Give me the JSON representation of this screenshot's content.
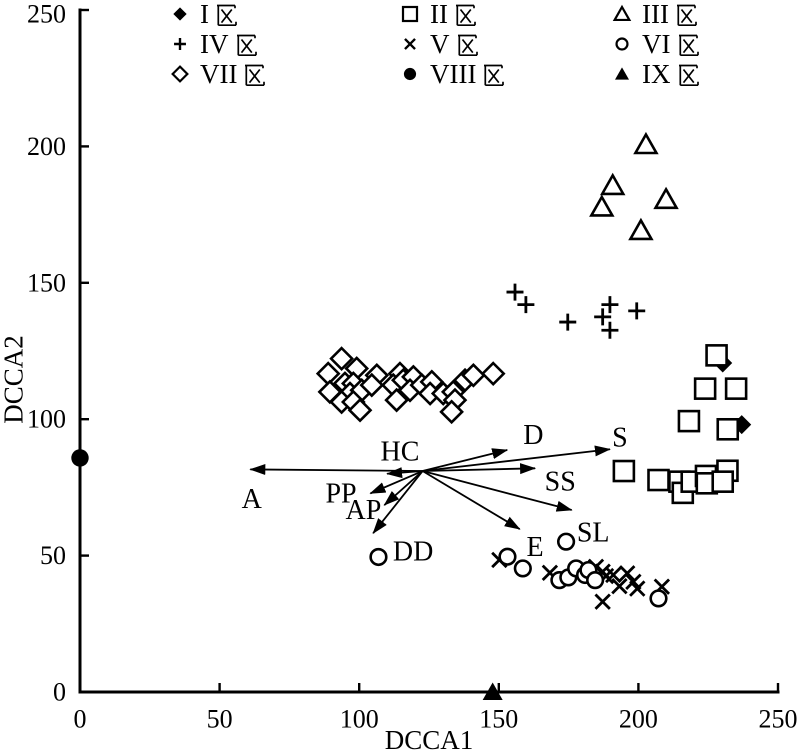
{
  "figure": {
    "background": "#ffffff",
    "ink": "#000000"
  },
  "district_suffix": "区",
  "chart_data": {
    "type": "scatter",
    "title": "",
    "xlabel": "DCCA1",
    "ylabel": "DCCA2",
    "xlim": [
      0,
      250
    ],
    "ylim": [
      0,
      250
    ],
    "xticks": [
      0,
      50,
      100,
      150,
      200,
      250
    ],
    "yticks": [
      0,
      50,
      100,
      150,
      200,
      250
    ],
    "xtick_labels": [
      "0",
      "50",
      "100",
      "150",
      "200",
      "250"
    ],
    "ytick_labels": [
      "0",
      "50",
      "100",
      "150",
      "200",
      "250"
    ],
    "grid": false,
    "legend_position": "top",
    "legend_columns": 3,
    "series": [
      {
        "name": "I区",
        "numeral": "I",
        "marker": "filled-diamond",
        "points": [
          [
            230.2,
            120.6
          ],
          [
            237,
            98
          ]
        ]
      },
      {
        "name": "II区",
        "numeral": "II",
        "marker": "open-square",
        "points": [
          [
            228,
            123.4
          ],
          [
            223.9,
            111.2
          ],
          [
            235,
            111.2
          ],
          [
            218.1,
            99.3
          ],
          [
            232,
            96.3
          ],
          [
            194.8,
            81
          ],
          [
            207.2,
            77.7
          ],
          [
            214.7,
            77.1
          ],
          [
            215.9,
            73
          ],
          [
            219.1,
            77.1
          ],
          [
            224.2,
            79.2
          ],
          [
            224.5,
            76.5
          ],
          [
            231.9,
            81.1
          ],
          [
            230.2,
            77.1
          ]
        ]
      },
      {
        "name": "III区",
        "numeral": "III",
        "marker": "open-triangle",
        "points": [
          [
            202.7,
            200.7
          ],
          [
            190.8,
            185.7
          ],
          [
            186.9,
            177.8
          ],
          [
            209.9,
            180.6
          ],
          [
            200.9,
            169.2
          ]
        ]
      },
      {
        "name": "IV区",
        "numeral": "IV",
        "marker": "plus",
        "points": [
          [
            155.8,
            146.6
          ],
          [
            159.7,
            142
          ],
          [
            174.7,
            135.6
          ],
          [
            189.8,
            142
          ],
          [
            187.2,
            137.5
          ],
          [
            189.8,
            132.6
          ],
          [
            199.4,
            139.7
          ]
        ]
      },
      {
        "name": "V区",
        "numeral": "V",
        "marker": "cross",
        "points": [
          [
            150.2,
            48.4
          ],
          [
            168.3,
            43.7
          ],
          [
            184.8,
            45.9
          ],
          [
            187.2,
            44.1
          ],
          [
            188.4,
            42.5
          ],
          [
            191,
            42.9
          ],
          [
            193.2,
            38.8
          ],
          [
            196,
            43.5
          ],
          [
            198.2,
            40.4
          ],
          [
            199.6,
            37.9
          ],
          [
            187.2,
            33.1
          ],
          [
            208.4,
            38.6
          ]
        ]
      },
      {
        "name": "VI区",
        "numeral": "VI",
        "marker": "open-circle",
        "points": [
          [
            106.9,
            49.5
          ],
          [
            153.1,
            49.6
          ],
          [
            158.6,
            45.3
          ],
          [
            171.7,
            41
          ],
          [
            174.9,
            42
          ],
          [
            177.7,
            45.3
          ],
          [
            180.9,
            42.9
          ],
          [
            182.1,
            44.7
          ],
          [
            184.5,
            41
          ],
          [
            174.1,
            55.1
          ],
          [
            207.2,
            34.3
          ]
        ]
      },
      {
        "name": "VII区",
        "numeral": "VII",
        "marker": "open-diamond",
        "points": [
          [
            93.7,
            122.2
          ],
          [
            88.9,
            116.7
          ],
          [
            99.1,
            118.6
          ],
          [
            106.3,
            116.1
          ],
          [
            94.9,
            113.1
          ],
          [
            97.9,
            113.1
          ],
          [
            89.5,
            110
          ],
          [
            96.7,
            109.4
          ],
          [
            100.9,
            110.6
          ],
          [
            104.5,
            112.5
          ],
          [
            93.7,
            106.3
          ],
          [
            97.9,
            106.3
          ],
          [
            100.3,
            103.3
          ],
          [
            114.6,
            116.7
          ],
          [
            112.2,
            112.5
          ],
          [
            115.8,
            114.3
          ],
          [
            119.4,
            115.5
          ],
          [
            113.4,
            107
          ],
          [
            118.2,
            110.6
          ],
          [
            122.4,
            112.5
          ],
          [
            126,
            113.7
          ],
          [
            125.4,
            109.4
          ],
          [
            130.1,
            109.4
          ],
          [
            133.7,
            110
          ],
          [
            134.3,
            107
          ],
          [
            133.1,
            102.7
          ],
          [
            137.9,
            114.3
          ],
          [
            140.9,
            116.1
          ],
          [
            148,
            116.7
          ]
        ]
      },
      {
        "name": "VIII区",
        "numeral": "VIII",
        "marker": "filled-circle",
        "points": [
          [
            0,
            85.8
          ]
        ]
      },
      {
        "name": "IX区",
        "numeral": "IX",
        "marker": "filled-triangle",
        "points": [
          [
            147.8,
            0
          ]
        ]
      }
    ],
    "biplot_arrows": {
      "origin": [
        122.7,
        81
      ],
      "items": [
        {
          "label": "A",
          "tip": [
            61,
            81.6
          ],
          "label_xy": [
            61.5,
            70.5
          ]
        },
        {
          "label": "HC",
          "tip": [
            110,
            80
          ],
          "label_xy": [
            114.6,
            88
          ]
        },
        {
          "label": "PP",
          "tip": [
            104,
            72.8
          ],
          "label_xy": [
            93.5,
            72.5
          ]
        },
        {
          "label": "AP",
          "tip": [
            109,
            68.5
          ],
          "label_xy": [
            101.5,
            66.5
          ]
        },
        {
          "label": "DD",
          "tip": [
            105,
            58.2
          ],
          "label_xy": [
            119.3,
            51.3
          ]
        },
        {
          "label": "D",
          "tip": [
            153,
            88.7
          ],
          "label_xy": [
            162.4,
            94
          ]
        },
        {
          "label": "S",
          "tip": [
            189.8,
            89
          ],
          "label_xy": [
            193.4,
            93.2
          ]
        },
        {
          "label": "SS",
          "tip": [
            163,
            82
          ],
          "label_xy": [
            172,
            77
          ]
        },
        {
          "label": "SL",
          "tip": [
            176.1,
            66.7
          ],
          "label_xy": [
            183.8,
            58.3
          ]
        },
        {
          "label": "E",
          "tip": [
            157.5,
            59.7
          ],
          "label_xy": [
            163,
            53
          ]
        }
      ]
    }
  }
}
